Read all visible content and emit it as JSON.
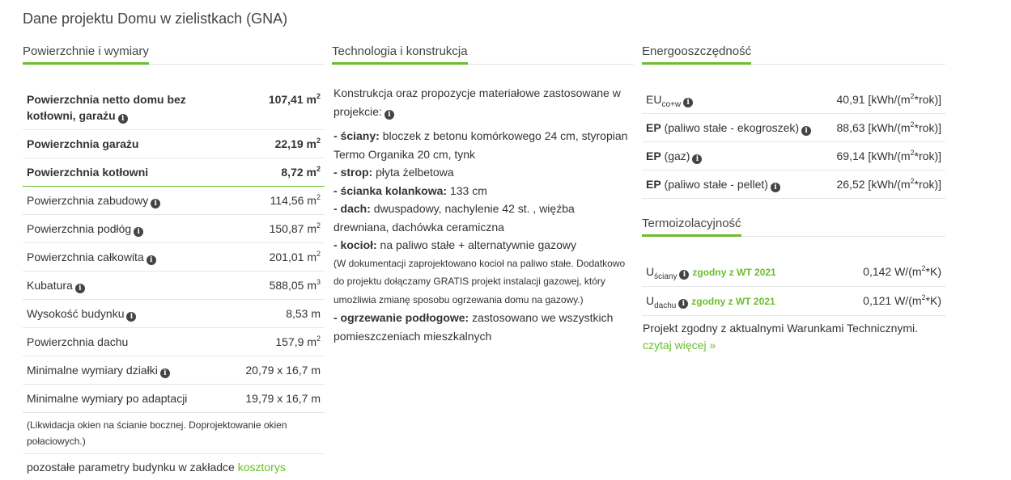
{
  "title": "Dane projektu Domu w zielistkach (GNA)",
  "dims": {
    "heading": "Powierzchnie i wymiary",
    "rows": [
      {
        "label": "Powierzchnia netto domu bez kotłowni, garażu",
        "value": "107,41 m",
        "sup": "2",
        "info": true,
        "bold": true
      },
      {
        "label": "Powierzchnia garażu",
        "value": "22,19 m",
        "sup": "2",
        "info": false,
        "bold": true
      },
      {
        "label": "Powierzchnia kotłowni",
        "value": "8,72 m",
        "sup": "2",
        "info": false,
        "bold": true
      },
      {
        "label": "Powierzchnia zabudowy",
        "value": "114,56 m",
        "sup": "2",
        "info": true
      },
      {
        "label": "Powierzchnia podłóg",
        "value": "150,87 m",
        "sup": "2",
        "info": true
      },
      {
        "label": "Powierzchnia całkowita",
        "value": "201,01 m",
        "sup": "2",
        "info": true
      },
      {
        "label": "Kubatura",
        "value": "588,05 m",
        "sup": "3",
        "info": true
      },
      {
        "label": "Wysokość budynku",
        "value": "8,53 m",
        "sup": "",
        "info": true
      },
      {
        "label": "Powierzchnia dachu",
        "value": "157,9 m",
        "sup": "2",
        "info": false
      },
      {
        "label": "Minimalne wymiary działki",
        "value": "20,79 x 16,7 m",
        "sup": "",
        "info": true
      },
      {
        "label": "Minimalne wymiary po adaptacji",
        "value": "19,79 x 16,7 m",
        "sup": "",
        "info": false
      }
    ],
    "note": "(Likwidacja okien na ścianie bocznej. Doprojektowanie okien połaciowych.)",
    "footer_text": "pozostałe parametry budynku w zakładce ",
    "footer_link": "kosztorys"
  },
  "tech": {
    "heading": "Technologia i konstrukcja",
    "intro": "Konstrukcja oraz propozycje materiałowe zastosowane w projekcie:",
    "items": [
      {
        "label": "- ściany:",
        "text": " bloczek z betonu komórkowego 24 cm, styropian Termo Organika 20 cm, tynk"
      },
      {
        "label": "- strop:",
        "text": " płyta żelbetowa"
      },
      {
        "label": "- ścianka kolankowa:",
        "text": " 133 cm"
      },
      {
        "label": "- dach:",
        "text": " dwuspadowy, nachylenie 42 st. , więźba drewniana, dachówka ceramiczna"
      },
      {
        "label": "- kocioł:",
        "text": " na paliwo stałe + alternatywnie gazowy"
      },
      {
        "label": "- ogrzewanie podłogowe:",
        "text": " zastosowano we wszystkich pomieszczeniach mieszkalnych"
      }
    ],
    "kociol_note": "(W dokumentacji zaprojektowano kocioł na paliwo stałe. Dodatkowo do projektu dołączamy GRATIS projekt instalacji gazowej, który umożliwia zmianę sposobu ogrzewania domu na gazowy.)"
  },
  "energy": {
    "heading": "Energooszczędność",
    "rows": [
      {
        "bold": "EU",
        "sub": "co+w",
        "label": "",
        "value": "40,91 [kWh/(m",
        "sup": "2",
        "tail": "*rok)]"
      },
      {
        "bold": "EP",
        "sub": "",
        "label": " (paliwo stałe - ekogroszek)",
        "value": "88,63 [kWh/(m",
        "sup": "2",
        "tail": "*rok)]"
      },
      {
        "bold": "EP",
        "sub": "",
        "label": " (gaz)",
        "value": "69,14 [kWh/(m",
        "sup": "2",
        "tail": "*rok)]"
      },
      {
        "bold": "EP",
        "sub": "",
        "label": " (paliwo stałe - pellet)",
        "value": "26,52 [kWh/(m",
        "sup": "2",
        "tail": "*rok)]"
      }
    ]
  },
  "thermo": {
    "heading": "Termoizolacyjność",
    "rows": [
      {
        "u": "U",
        "sub": "ściany",
        "badge": "zgodny z WT 2021",
        "value": "0,142 W/(m",
        "sup": "2",
        "tail": "*K)"
      },
      {
        "u": "U",
        "sub": "dachu",
        "badge": "zgodny z WT 2021",
        "value": "0,121 W/(m",
        "sup": "2",
        "tail": "*K)"
      }
    ],
    "text": "Projekt zgodny z aktualnymi Warunkami Technicznymi.",
    "link": "czytaj więcej »"
  },
  "colors": {
    "accent": "#6cbd2d",
    "text": "#333333"
  }
}
